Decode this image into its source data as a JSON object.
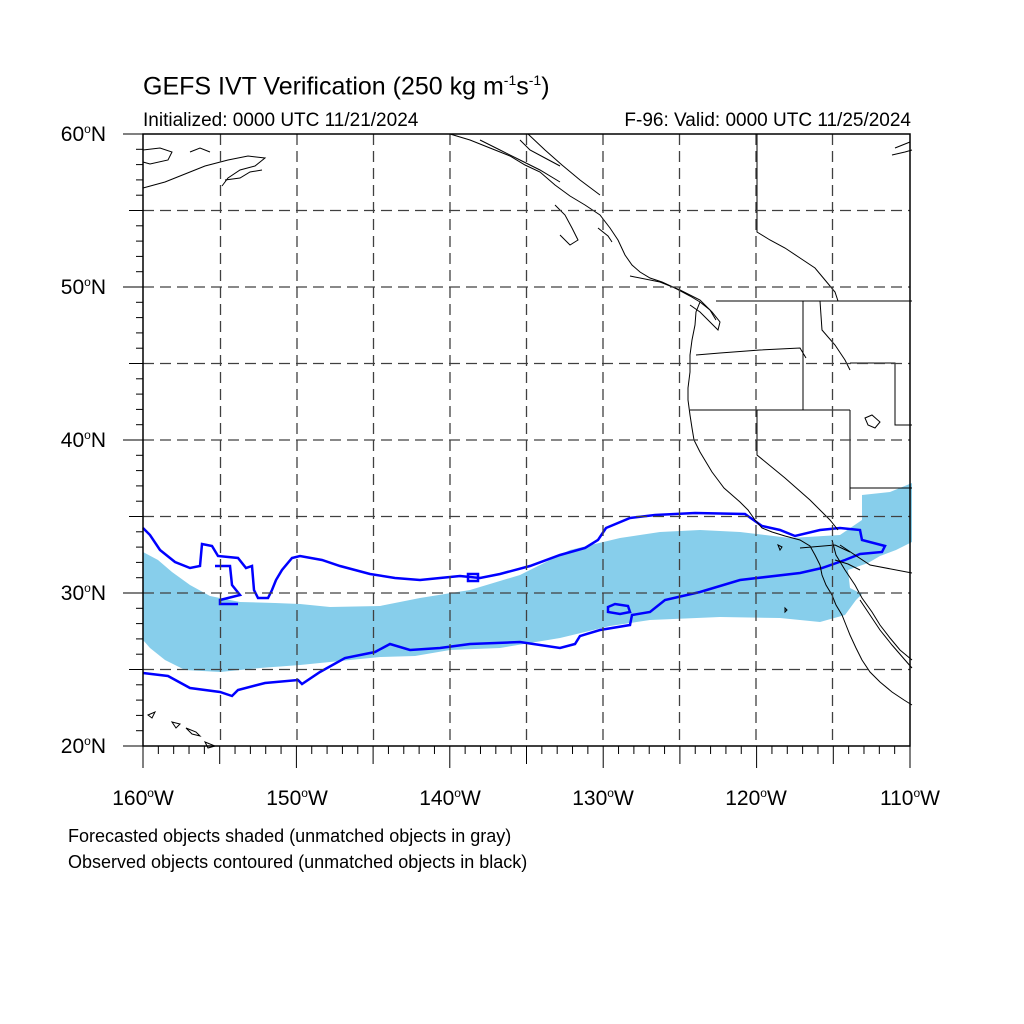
{
  "title": {
    "main": "GEFS IVT Verification (250 kg m",
    "exp1": "-1",
    "mid": "s",
    "exp2": "-1",
    "end": ")"
  },
  "initialized": "Initialized: 0000 UTC 11/21/2024",
  "valid": "F-96: Valid: 0000 UTC 11/25/2024",
  "map": {
    "lon_range": [
      -160,
      -110
    ],
    "lat_range": [
      20,
      60
    ],
    "grid_lines": "dashed every 5 degrees",
    "lat_labels": [
      {
        "num": "60",
        "deg": "o",
        "hemi": "N"
      },
      {
        "num": "50",
        "deg": "o",
        "hemi": "N"
      },
      {
        "num": "40",
        "deg": "o",
        "hemi": "N"
      },
      {
        "num": "30",
        "deg": "o",
        "hemi": "N"
      },
      {
        "num": "20",
        "deg": "o",
        "hemi": "N"
      }
    ],
    "lon_labels": [
      {
        "num": "160",
        "deg": "o",
        "hemi": "W"
      },
      {
        "num": "150",
        "deg": "o",
        "hemi": "W"
      },
      {
        "num": "140",
        "deg": "o",
        "hemi": "W"
      },
      {
        "num": "130",
        "deg": "o",
        "hemi": "W"
      },
      {
        "num": "120",
        "deg": "o",
        "hemi": "W"
      },
      {
        "num": "110",
        "deg": "o",
        "hemi": "W"
      }
    ],
    "forecast_fill_color": "#87ceeb",
    "observed_contour_color": "#0000ff"
  },
  "notes": [
    "Forecasted objects shaded (unmatched objects in gray)",
    "Observed objects contoured (unmatched objects in black)"
  ]
}
